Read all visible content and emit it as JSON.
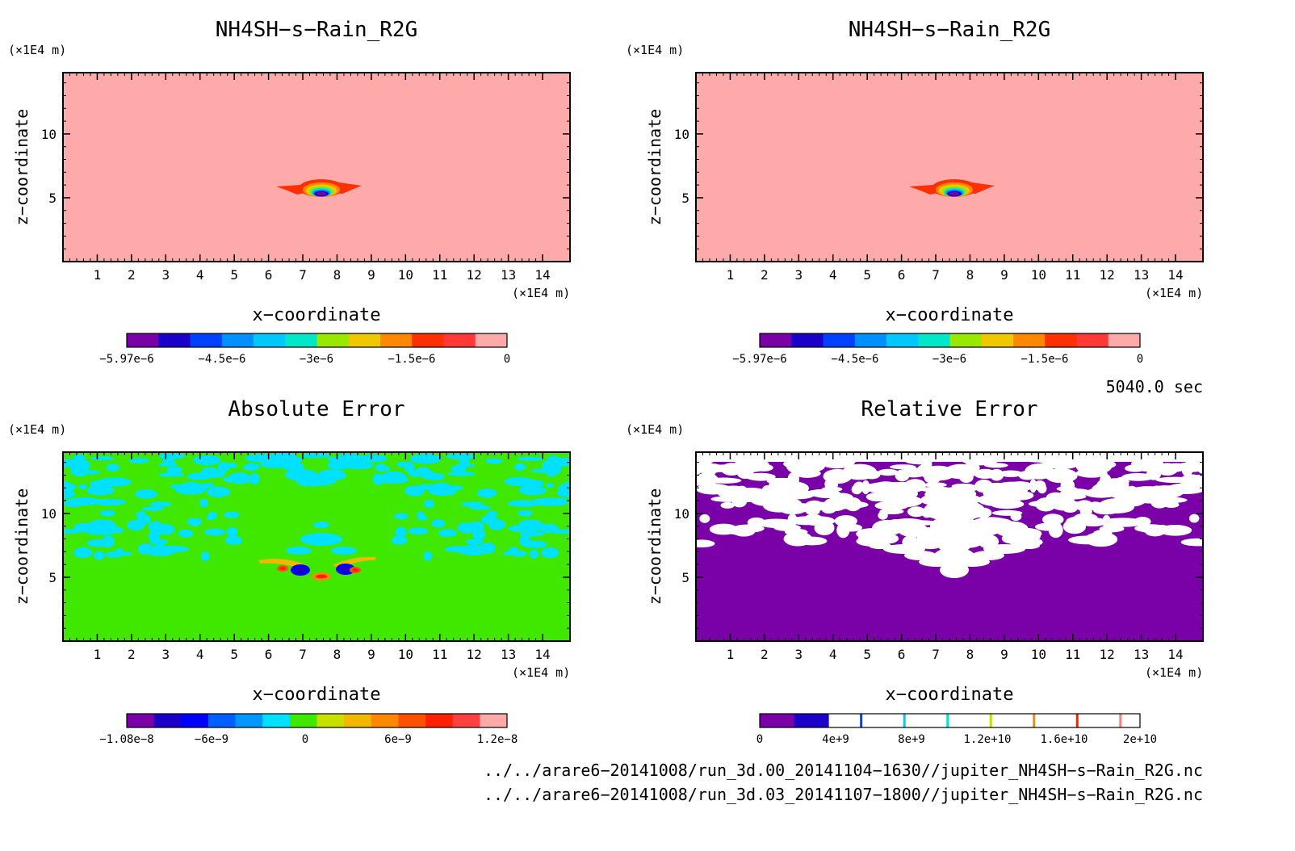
{
  "panels": [
    {
      "title": "NH4SH−s−Rain_R2G",
      "xlabel": "x−coordinate",
      "ylabel": "z−coordinate",
      "unit_label": "(×1E4 m)",
      "x_ticks": [
        "1",
        "2",
        "3",
        "4",
        "5",
        "6",
        "7",
        "8",
        "9",
        "10",
        "11",
        "12",
        "13",
        "14"
      ],
      "y_ticks": [
        "5",
        "10"
      ],
      "colorbar_labels": [
        "−5.97e−6",
        "−4.5e−6",
        "−3e−6",
        "−1.5e−6",
        "0"
      ]
    },
    {
      "title": "NH4SH−s−Rain_R2G",
      "xlabel": "x−coordinate",
      "ylabel": "z−coordinate",
      "unit_label": "(×1E4 m)",
      "x_ticks": [
        "1",
        "2",
        "3",
        "4",
        "5",
        "6",
        "7",
        "8",
        "9",
        "10",
        "11",
        "12",
        "13",
        "14"
      ],
      "y_ticks": [
        "5",
        "10"
      ],
      "colorbar_labels": [
        "−5.97e−6",
        "−4.5e−6",
        "−3e−6",
        "−1.5e−6",
        "0"
      ]
    },
    {
      "title": "Absolute Error",
      "xlabel": "x−coordinate",
      "ylabel": "z−coordinate",
      "unit_label": "(×1E4 m)",
      "x_ticks": [
        "1",
        "2",
        "3",
        "4",
        "5",
        "6",
        "7",
        "8",
        "9",
        "10",
        "11",
        "12",
        "13",
        "14"
      ],
      "y_ticks": [
        "5",
        "10"
      ],
      "colorbar_labels": [
        "−1.08e−8",
        "−6e−9",
        "0",
        "6e−9",
        "1.2e−8"
      ]
    },
    {
      "title": "Relative Error",
      "xlabel": "x−coordinate",
      "ylabel": "z−coordinate",
      "unit_label": "(×1E4 m)",
      "x_ticks": [
        "1",
        "2",
        "3",
        "4",
        "5",
        "6",
        "7",
        "8",
        "9",
        "10",
        "11",
        "12",
        "13",
        "14"
      ],
      "y_ticks": [
        "5",
        "10"
      ],
      "colorbar_labels": [
        "0",
        "4e+9",
        "8e+9",
        "1.2e+10",
        "1.6e+10",
        "2e+10"
      ]
    }
  ],
  "time_label": "5040.0 sec",
  "footer": [
    "../../arare6−20141008/run_3d.00_20141104−1630//jupiter_NH4SH−s−Rain_R2G.nc",
    "../../arare6−20141008/run_3d.03_20141107−1800//jupiter_NH4SH−s−Rain_R2G.nc"
  ],
  "colors": {
    "rain_scale": [
      "#7a00a8",
      "#1a00c8",
      "#0040ff",
      "#0090ff",
      "#00c8ff",
      "#00e8c8",
      "#98e800",
      "#f0c800",
      "#ff8800",
      "#ff3000",
      "#ff3838",
      "#ffaaaa"
    ],
    "abs_scale": [
      "#7a00a8",
      "#1a00c8",
      "#0000ff",
      "#0060ff",
      "#0098ff",
      "#00e0ff",
      "#40e800",
      "#c8e000",
      "#f0b800",
      "#ff8800",
      "#ff5000",
      "#ff2000",
      "#ff4040",
      "#ffaaaa"
    ],
    "rel_scale": [
      "#7a00a8",
      "#1a00c8",
      "#ffffff",
      "#ffffff",
      "#ffffff",
      "#ffffff",
      "#ffffff",
      "#ffffff",
      "#ffffff",
      "#ffffff",
      "#ffffff"
    ],
    "rain_background": "#ffaaaa",
    "abs_background": "#40e800",
    "abs_secondary": "#00e0ff",
    "rel_background": "#7a00a8",
    "rel_secondary": "#ffffff"
  },
  "chart_data": [
    {
      "type": "heatmap",
      "title": "NH4SH−s−Rain_R2G",
      "xlabel": "x−coordinate",
      "ylabel": "z−coordinate",
      "xlim": [
        0,
        14.8
      ],
      "ylim": [
        0,
        14.8
      ],
      "value_range": [
        -5.97e-06,
        0
      ],
      "colorbar_ticks": [
        -5.97e-06,
        -4.5e-06,
        -3e-06,
        -1.5e-06,
        0
      ],
      "feature": {
        "x_center": 7.6,
        "z_center": 5.5,
        "min_value": -5.97e-06,
        "background_value": 0
      }
    },
    {
      "type": "heatmap",
      "title": "NH4SH−s−Rain_R2G",
      "xlabel": "x−coordinate",
      "ylabel": "z−coordinate",
      "xlim": [
        0,
        14.8
      ],
      "ylim": [
        0,
        14.8
      ],
      "value_range": [
        -5.97e-06,
        0
      ],
      "colorbar_ticks": [
        -5.97e-06,
        -4.5e-06,
        -3e-06,
        -1.5e-06,
        0
      ],
      "feature": {
        "x_center": 7.6,
        "z_center": 5.5,
        "min_value": -5.97e-06,
        "background_value": 0
      }
    },
    {
      "type": "heatmap",
      "title": "Absolute Error",
      "xlabel": "x−coordinate",
      "ylabel": "z−coordinate",
      "xlim": [
        0,
        14.8
      ],
      "ylim": [
        0,
        14.8
      ],
      "value_range": [
        -1.08e-08,
        1.2e-08
      ],
      "colorbar_ticks": [
        -1.08e-08,
        -6e-09,
        0,
        6e-09,
        1.2e-08
      ]
    },
    {
      "type": "heatmap",
      "title": "Relative Error",
      "xlabel": "x−coordinate",
      "ylabel": "z−coordinate",
      "xlim": [
        0,
        14.8
      ],
      "ylim": [
        0,
        14.8
      ],
      "value_range": [
        0,
        20000000000.0
      ],
      "colorbar_ticks": [
        0,
        4000000000.0,
        8000000000.0,
        12000000000.0,
        16000000000.0,
        20000000000.0
      ]
    }
  ]
}
